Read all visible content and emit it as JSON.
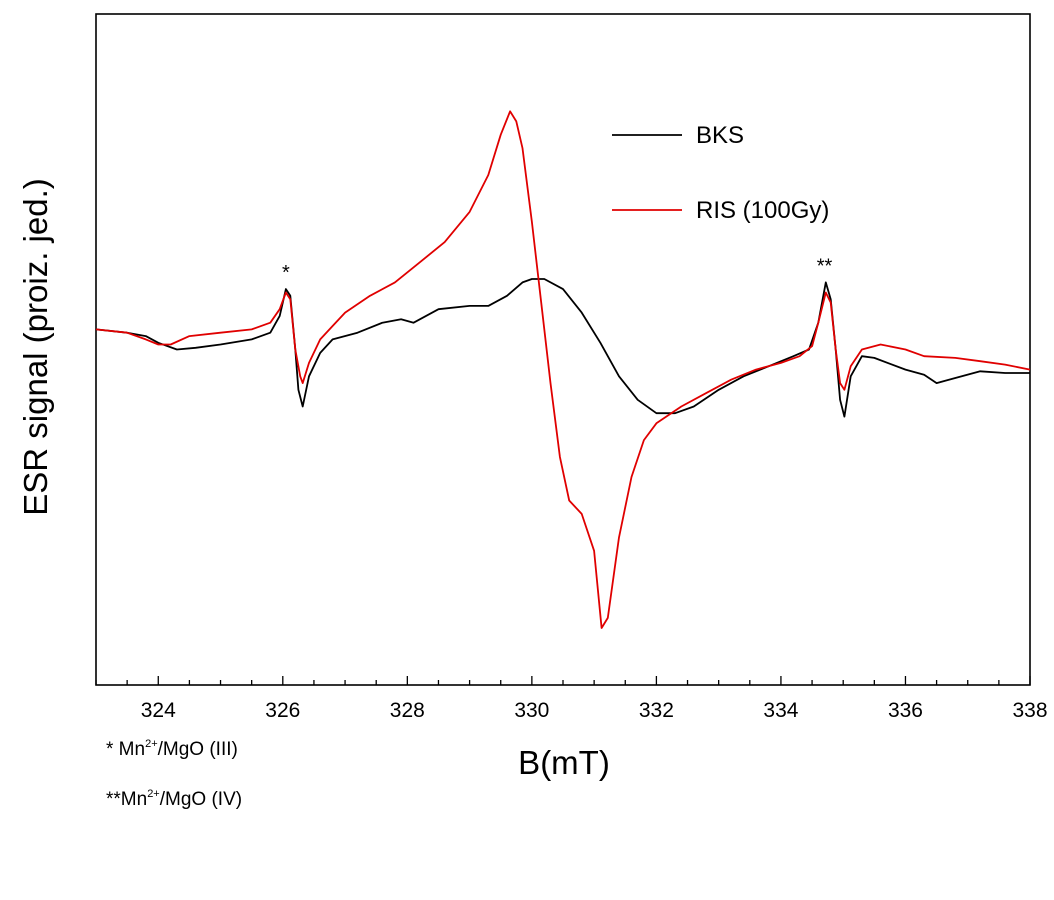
{
  "chart_data": {
    "type": "line",
    "xlabel": "B(mT)",
    "ylabel": "ESR signal (proiz. jed.)",
    "xlim": [
      323,
      338
    ],
    "ylim": [
      -1.0,
      1.0
    ],
    "x_ticks": [
      "324",
      "326",
      "328",
      "330",
      "332",
      "334",
      "336",
      "338"
    ],
    "y_ticks_shown": false,
    "grid": false,
    "legend_position": "top-right",
    "annotations": [
      {
        "text": "*",
        "x": 326.05
      },
      {
        "text": "**",
        "x": 334.7
      }
    ],
    "series": [
      {
        "name": "BKS",
        "color": "#000000",
        "points": [
          [
            323.0,
            0.06
          ],
          [
            323.5,
            0.05
          ],
          [
            323.8,
            0.04
          ],
          [
            324.0,
            0.02
          ],
          [
            324.3,
            0.0
          ],
          [
            324.6,
            0.005
          ],
          [
            325.0,
            0.015
          ],
          [
            325.5,
            0.03
          ],
          [
            325.8,
            0.05
          ],
          [
            325.95,
            0.1
          ],
          [
            326.05,
            0.18
          ],
          [
            326.12,
            0.16
          ],
          [
            326.2,
            0.0
          ],
          [
            326.25,
            -0.12
          ],
          [
            326.32,
            -0.17
          ],
          [
            326.42,
            -0.08
          ],
          [
            326.6,
            -0.01
          ],
          [
            326.8,
            0.03
          ],
          [
            327.2,
            0.05
          ],
          [
            327.6,
            0.08
          ],
          [
            327.9,
            0.09
          ],
          [
            328.1,
            0.08
          ],
          [
            328.5,
            0.12
          ],
          [
            329.0,
            0.13
          ],
          [
            329.3,
            0.13
          ],
          [
            329.6,
            0.16
          ],
          [
            329.85,
            0.2
          ],
          [
            330.0,
            0.21
          ],
          [
            330.2,
            0.21
          ],
          [
            330.5,
            0.18
          ],
          [
            330.8,
            0.11
          ],
          [
            331.1,
            0.02
          ],
          [
            331.4,
            -0.08
          ],
          [
            331.7,
            -0.15
          ],
          [
            332.0,
            -0.19
          ],
          [
            332.3,
            -0.19
          ],
          [
            332.6,
            -0.17
          ],
          [
            333.0,
            -0.12
          ],
          [
            333.4,
            -0.08
          ],
          [
            333.8,
            -0.05
          ],
          [
            334.2,
            -0.02
          ],
          [
            334.45,
            0.0
          ],
          [
            334.6,
            0.08
          ],
          [
            334.72,
            0.2
          ],
          [
            334.8,
            0.15
          ],
          [
            334.88,
            0.0
          ],
          [
            334.95,
            -0.15
          ],
          [
            335.02,
            -0.2
          ],
          [
            335.12,
            -0.08
          ],
          [
            335.3,
            -0.02
          ],
          [
            335.5,
            -0.025
          ],
          [
            336.0,
            -0.06
          ],
          [
            336.3,
            -0.075
          ],
          [
            336.5,
            -0.1
          ],
          [
            336.8,
            -0.085
          ],
          [
            337.2,
            -0.065
          ],
          [
            337.6,
            -0.07
          ],
          [
            338.0,
            -0.07
          ]
        ]
      },
      {
        "name": "RIS (100Gy)",
        "color": "#e00000",
        "points": [
          [
            323.0,
            0.06
          ],
          [
            323.5,
            0.05
          ],
          [
            323.8,
            0.03
          ],
          [
            324.0,
            0.015
          ],
          [
            324.2,
            0.015
          ],
          [
            324.5,
            0.04
          ],
          [
            325.0,
            0.05
          ],
          [
            325.5,
            0.06
          ],
          [
            325.8,
            0.08
          ],
          [
            325.95,
            0.12
          ],
          [
            326.05,
            0.17
          ],
          [
            326.12,
            0.15
          ],
          [
            326.2,
            0.0
          ],
          [
            326.28,
            -0.08
          ],
          [
            326.32,
            -0.1
          ],
          [
            326.42,
            -0.04
          ],
          [
            326.6,
            0.03
          ],
          [
            326.8,
            0.07
          ],
          [
            327.0,
            0.11
          ],
          [
            327.4,
            0.16
          ],
          [
            327.8,
            0.2
          ],
          [
            328.2,
            0.26
          ],
          [
            328.6,
            0.32
          ],
          [
            329.0,
            0.41
          ],
          [
            329.3,
            0.52
          ],
          [
            329.5,
            0.64
          ],
          [
            329.65,
            0.71
          ],
          [
            329.75,
            0.68
          ],
          [
            329.85,
            0.6
          ],
          [
            330.0,
            0.38
          ],
          [
            330.15,
            0.14
          ],
          [
            330.3,
            -0.1
          ],
          [
            330.45,
            -0.32
          ],
          [
            330.6,
            -0.45
          ],
          [
            330.8,
            -0.49
          ],
          [
            331.0,
            -0.6
          ],
          [
            331.12,
            -0.83
          ],
          [
            331.22,
            -0.8
          ],
          [
            331.4,
            -0.56
          ],
          [
            331.6,
            -0.38
          ],
          [
            331.8,
            -0.27
          ],
          [
            332.0,
            -0.22
          ],
          [
            332.4,
            -0.17
          ],
          [
            332.8,
            -0.13
          ],
          [
            333.2,
            -0.09
          ],
          [
            333.6,
            -0.06
          ],
          [
            334.0,
            -0.04
          ],
          [
            334.3,
            -0.02
          ],
          [
            334.5,
            0.01
          ],
          [
            334.6,
            0.08
          ],
          [
            334.72,
            0.17
          ],
          [
            334.8,
            0.14
          ],
          [
            334.88,
            0.0
          ],
          [
            334.95,
            -0.1
          ],
          [
            335.02,
            -0.12
          ],
          [
            335.12,
            -0.05
          ],
          [
            335.3,
            0.0
          ],
          [
            335.6,
            0.015
          ],
          [
            336.0,
            0.0
          ],
          [
            336.3,
            -0.02
          ],
          [
            336.8,
            -0.025
          ],
          [
            337.2,
            -0.035
          ],
          [
            337.6,
            -0.045
          ],
          [
            338.0,
            -0.06
          ]
        ]
      }
    ]
  },
  "footnotes": {
    "n1_prefix": "*  Mn",
    "n1_sup": "2+",
    "n1_suffix": "/MgO (III)",
    "n2_prefix": "**Mn",
    "n2_sup": "2+",
    "n2_suffix": "/MgO (IV)"
  }
}
